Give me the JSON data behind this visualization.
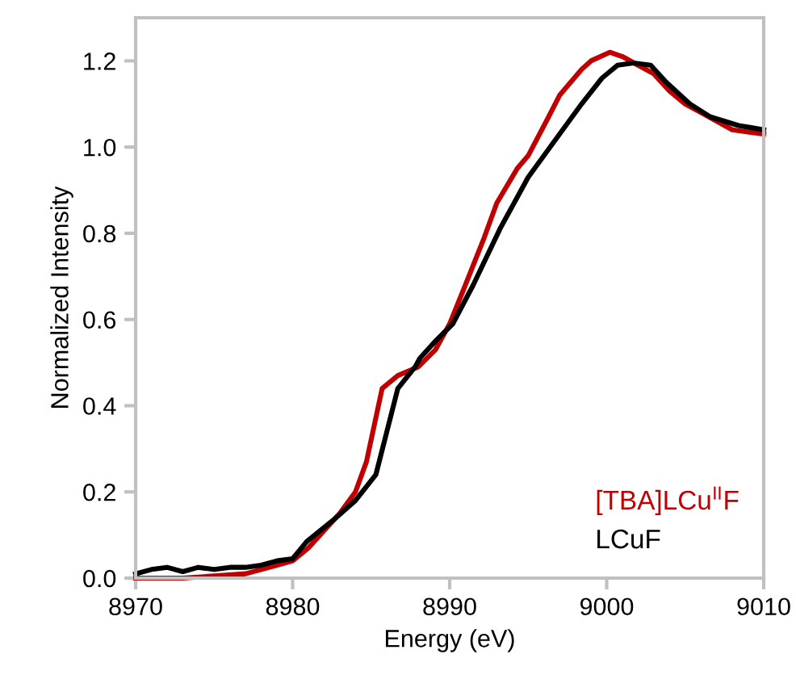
{
  "chart_data": {
    "type": "line",
    "xlabel": "Energy (eV)",
    "ylabel": "Normalized Intensity",
    "xlim": [
      8970,
      9010
    ],
    "xticks": [
      8970,
      8980,
      8990,
      9000,
      9010
    ],
    "ylim": [
      0,
      1.3
    ],
    "yticks": [
      {
        "value": 0,
        "label": "0.0"
      },
      {
        "value": 0.2,
        "label": "0.2"
      },
      {
        "value": 0.4,
        "label": "0.4"
      },
      {
        "value": 0.6,
        "label": "0.6"
      },
      {
        "value": 0.8,
        "label": "0.8"
      },
      {
        "value": 1.0,
        "label": "1.0"
      },
      {
        "value": 1.2,
        "label": "1.2"
      }
    ],
    "grid": false,
    "legend": "bottom right",
    "series": [
      {
        "name": "[TBA]LCu$^{II}$F",
        "color": "#c00000",
        "x": [
          8970,
          8973,
          8975,
          8977,
          8978,
          8979,
          8980,
          8981,
          8982,
          8983,
          8984,
          8984.7,
          8985.7,
          8986.7,
          8988,
          8989.1,
          8990,
          8991,
          8992.2,
          8993,
          8994.3,
          8995,
          8996.3,
          8997,
          8998.4,
          8999,
          9000.2,
          9001,
          9002,
          9003,
          9004,
          9005,
          9006,
          9007,
          9008,
          9009,
          9010
        ],
        "values": [
          0.0,
          0.0,
          0.005,
          0.01,
          0.02,
          0.03,
          0.04,
          0.07,
          0.11,
          0.15,
          0.2,
          0.27,
          0.44,
          0.47,
          0.49,
          0.53,
          0.59,
          0.68,
          0.79,
          0.87,
          0.95,
          0.98,
          1.07,
          1.12,
          1.18,
          1.2,
          1.22,
          1.21,
          1.19,
          1.17,
          1.13,
          1.1,
          1.08,
          1.06,
          1.04,
          1.035,
          1.03
        ]
      },
      {
        "name": "LCuF",
        "color": "#000000",
        "x": [
          8970,
          8971,
          8972,
          8973,
          8974,
          8975,
          8976,
          8977,
          8978,
          8979,
          8980,
          8980.9,
          8982.6,
          8984,
          8985.3,
          8986,
          8986.7,
          8987.8,
          8988.1,
          8989.1,
          8990.2,
          8991.5,
          8993.2,
          8995,
          8996.6,
          8998.4,
          8999.7,
          9000.7,
          9001.7,
          9002.8,
          9003.8,
          9005.3,
          9006.6,
          9008.4,
          9009.2,
          9010
        ],
        "values": [
          0.01,
          0.02,
          0.025,
          0.015,
          0.025,
          0.02,
          0.025,
          0.025,
          0.03,
          0.04,
          0.045,
          0.085,
          0.135,
          0.18,
          0.24,
          0.34,
          0.44,
          0.49,
          0.51,
          0.55,
          0.59,
          0.68,
          0.81,
          0.93,
          1.01,
          1.1,
          1.16,
          1.19,
          1.195,
          1.19,
          1.15,
          1.1,
          1.07,
          1.05,
          1.045,
          1.04
        ]
      }
    ]
  }
}
